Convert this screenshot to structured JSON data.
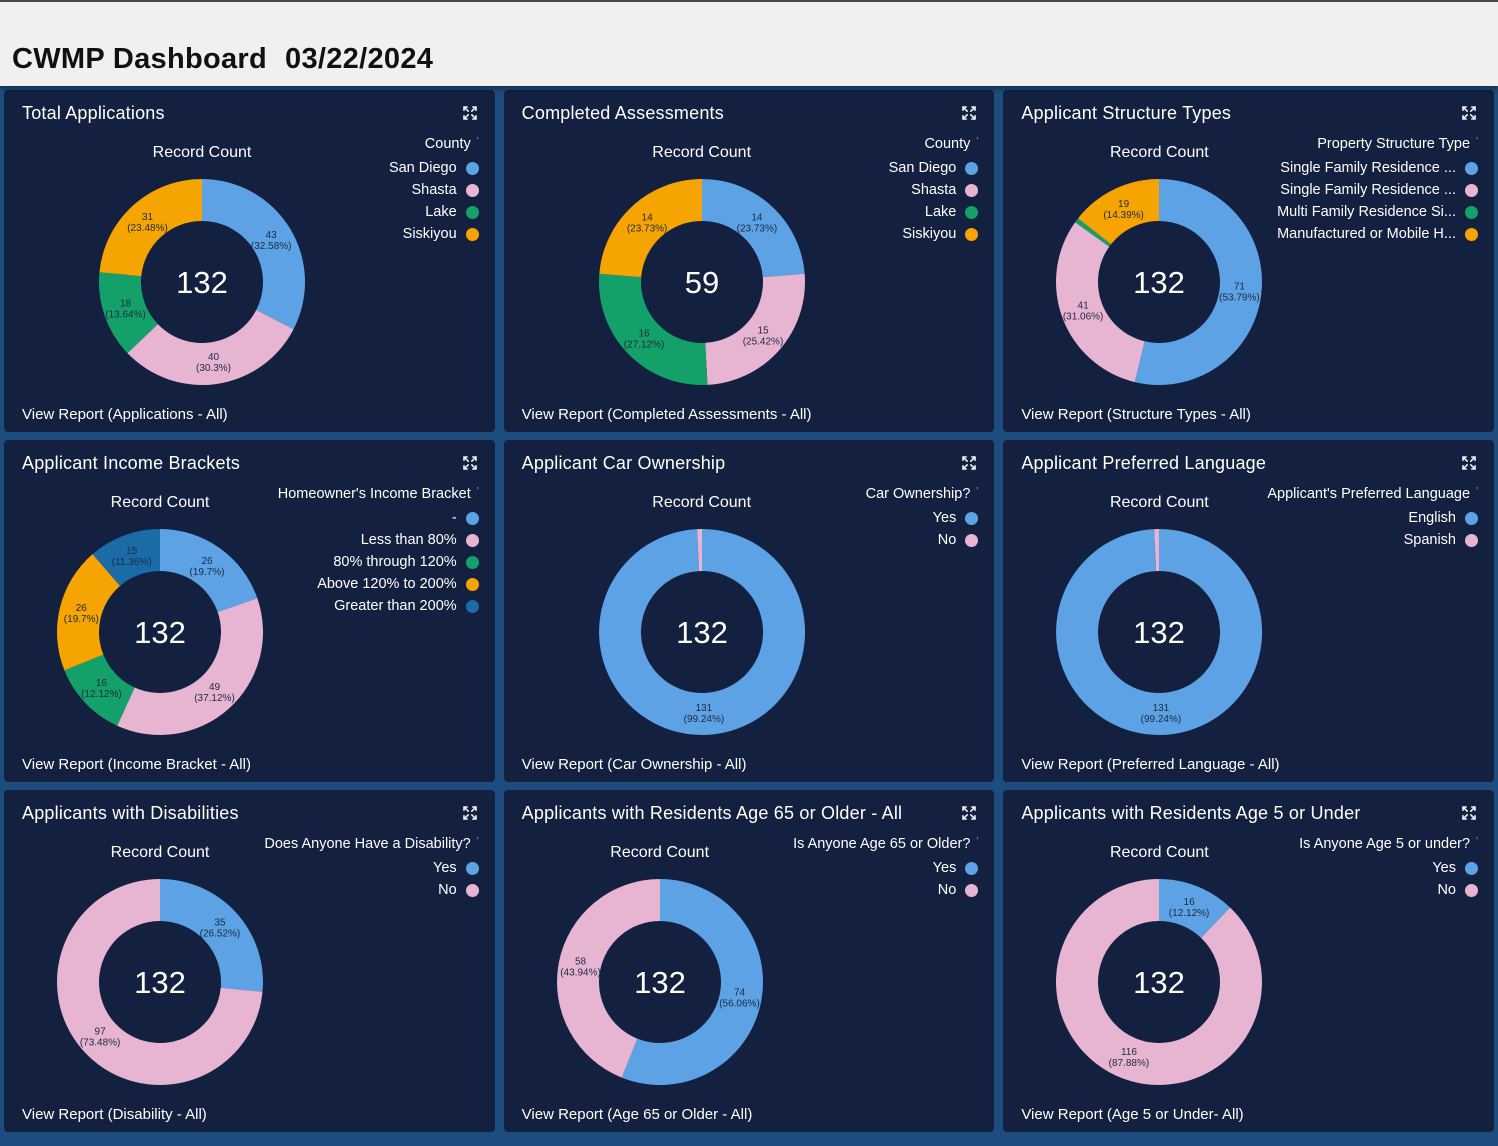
{
  "header": {
    "title": "CWMP Dashboard",
    "date": "03/22/2024"
  },
  "colors": {
    "page_bg": "#1D4D7E",
    "panel_bg": "#13203F",
    "header_bg": "#F1F0EE",
    "header_text": "#111111",
    "text": "#FFFFFF",
    "slice_label": "#1D2A44",
    "palette": {
      "blue": "#5CA2E4",
      "pink": "#E7B4D1",
      "green": "#14A069",
      "orange": "#F6A402",
      "steel": "#1B6CA6"
    }
  },
  "icons": {
    "focus_mode": "four-corner-expand-arrows",
    "legend_marker": "filled-circle"
  },
  "chart_data": [
    {
      "type": "donut",
      "title": "Total Applications",
      "inner_label": "Record Count",
      "total": 132,
      "legend_title": "County",
      "wide_legend": false,
      "legend": [
        {
          "label": "San Diego",
          "color": "blue"
        },
        {
          "label": "Shasta",
          "color": "pink"
        },
        {
          "label": "Lake",
          "color": "green"
        },
        {
          "label": "Siskiyou",
          "color": "orange"
        }
      ],
      "slices": [
        {
          "label": "San Diego",
          "value": 43,
          "pct": "32.58%",
          "color": "blue"
        },
        {
          "label": "Shasta",
          "value": 40,
          "pct": "30.3%",
          "color": "pink"
        },
        {
          "label": "Lake",
          "value": 18,
          "pct": "13.64%",
          "color": "green"
        },
        {
          "label": "Siskiyou",
          "value": 31,
          "pct": "23.48%",
          "color": "orange"
        }
      ],
      "view_report": "View Report (Applications - All)"
    },
    {
      "type": "donut",
      "title": "Completed Assessments",
      "inner_label": "Record Count",
      "total": 59,
      "legend_title": "County",
      "wide_legend": false,
      "legend": [
        {
          "label": "San Diego",
          "color": "blue"
        },
        {
          "label": "Shasta",
          "color": "pink"
        },
        {
          "label": "Lake",
          "color": "green"
        },
        {
          "label": "Siskiyou",
          "color": "orange"
        }
      ],
      "slices": [
        {
          "label": "San Diego",
          "value": 14,
          "pct": "23.73%",
          "color": "blue"
        },
        {
          "label": "Shasta",
          "value": 15,
          "pct": "25.42%",
          "color": "pink"
        },
        {
          "label": "Lake",
          "value": 16,
          "pct": "27.12%",
          "color": "green"
        },
        {
          "label": "Siskiyou",
          "value": 14,
          "pct": "23.73%",
          "color": "orange"
        }
      ],
      "view_report": "View Report (Completed Assessments - All)"
    },
    {
      "type": "donut",
      "title": "Applicant Structure Types",
      "inner_label": "Record Count",
      "total": 132,
      "legend_title": "Property Structure Type",
      "wide_legend": true,
      "legend": [
        {
          "label": "Single Family Residence ...",
          "color": "blue"
        },
        {
          "label": "Single Family Residence ...",
          "color": "pink"
        },
        {
          "label": "Multi Family Residence Si...",
          "color": "green"
        },
        {
          "label": "Manufactured or Mobile H...",
          "color": "orange"
        }
      ],
      "slices": [
        {
          "label": "Single Family Residence ...",
          "value": 71,
          "pct": "53.79%",
          "color": "blue"
        },
        {
          "label": "Single Family Residence ...",
          "value": 41,
          "pct": "31.06%",
          "color": "pink"
        },
        {
          "label": "Multi Family Residence Si...",
          "value": 1,
          "pct": null,
          "color": "green"
        },
        {
          "label": "Manufactured or Mobile H...",
          "value": 19,
          "pct": "14.39%",
          "color": "orange"
        }
      ],
      "view_report": "View Report (Structure Types - All)"
    },
    {
      "type": "donut",
      "title": "Applicant Income Brackets",
      "inner_label": "Record Count",
      "total": 132,
      "legend_title": "Homeowner's Income Bracket",
      "wide_legend": true,
      "legend": [
        {
          "label": "-",
          "color": "blue"
        },
        {
          "label": "Less than 80%",
          "color": "pink"
        },
        {
          "label": "80% through 120%",
          "color": "green"
        },
        {
          "label": "Above 120% to 200%",
          "color": "orange"
        },
        {
          "label": "Greater than 200%",
          "color": "steel"
        }
      ],
      "slices": [
        {
          "label": "-",
          "value": 26,
          "pct": "19.7%",
          "color": "blue"
        },
        {
          "label": "Less than 80%",
          "value": 49,
          "pct": "37.12%",
          "color": "pink"
        },
        {
          "label": "80% through 120%",
          "value": 16,
          "pct": "12.12%",
          "color": "green"
        },
        {
          "label": "Above 120% to 200%",
          "value": 26,
          "pct": "19.7%",
          "color": "orange"
        },
        {
          "label": "Greater than 200%",
          "value": 15,
          "pct": "11.36%",
          "color": "steel"
        }
      ],
      "view_report": "View Report (Income Bracket - All)"
    },
    {
      "type": "donut",
      "title": "Applicant Car Ownership",
      "inner_label": "Record Count",
      "total": 132,
      "legend_title": "Car Ownership?",
      "wide_legend": false,
      "legend": [
        {
          "label": "Yes",
          "color": "blue"
        },
        {
          "label": "No",
          "color": "pink"
        }
      ],
      "slices": [
        {
          "label": "Yes",
          "value": 131,
          "pct": "99.24%",
          "color": "blue"
        },
        {
          "label": "No",
          "value": 1,
          "pct": null,
          "color": "pink"
        }
      ],
      "view_report": "View Report (Car Ownership - All)"
    },
    {
      "type": "donut",
      "title": "Applicant Preferred Language",
      "inner_label": "Record Count",
      "total": 132,
      "legend_title": "Applicant's Preferred Language",
      "wide_legend": true,
      "legend": [
        {
          "label": "English",
          "color": "blue"
        },
        {
          "label": "Spanish",
          "color": "pink"
        }
      ],
      "slices": [
        {
          "label": "English",
          "value": 131,
          "pct": "99.24%",
          "color": "blue"
        },
        {
          "label": "Spanish",
          "value": 1,
          "pct": null,
          "color": "pink"
        }
      ],
      "view_report": "View Report (Preferred Language - All)"
    },
    {
      "type": "donut",
      "title": "Applicants with Disabilities",
      "inner_label": "Record Count",
      "total": 132,
      "legend_title": "Does Anyone Have a Disability?",
      "wide_legend": true,
      "legend": [
        {
          "label": "Yes",
          "color": "blue"
        },
        {
          "label": "No",
          "color": "pink"
        }
      ],
      "slices": [
        {
          "label": "Yes",
          "value": 35,
          "pct": "26.52%",
          "color": "blue"
        },
        {
          "label": "No",
          "value": 97,
          "pct": "73.48%",
          "color": "pink"
        }
      ],
      "view_report": "View Report (Disability - All)"
    },
    {
      "type": "donut",
      "title": "Applicants with Residents Age 65 or Older - All",
      "inner_label": "Record Count",
      "total": 132,
      "legend_title": "Is Anyone Age 65 or Older?",
      "wide_legend": true,
      "legend": [
        {
          "label": "Yes",
          "color": "blue"
        },
        {
          "label": "No",
          "color": "pink"
        }
      ],
      "slices": [
        {
          "label": "Yes",
          "value": 74,
          "pct": "56.06%",
          "color": "blue"
        },
        {
          "label": "No",
          "value": 58,
          "pct": "43.94%",
          "color": "pink"
        }
      ],
      "view_report": "View Report (Age 65 or Older - All)"
    },
    {
      "type": "donut",
      "title": "Applicants with Residents Age 5 or Under",
      "inner_label": "Record Count",
      "total": 132,
      "legend_title": "Is Anyone Age 5 or under?",
      "wide_legend": true,
      "legend": [
        {
          "label": "Yes",
          "color": "blue"
        },
        {
          "label": "No",
          "color": "pink"
        }
      ],
      "slices": [
        {
          "label": "Yes",
          "value": 16,
          "pct": "12.12%",
          "color": "blue"
        },
        {
          "label": "No",
          "value": 116,
          "pct": "87.88%",
          "color": "pink"
        }
      ],
      "view_report": "View Report (Age 5 or Under- All)"
    }
  ]
}
